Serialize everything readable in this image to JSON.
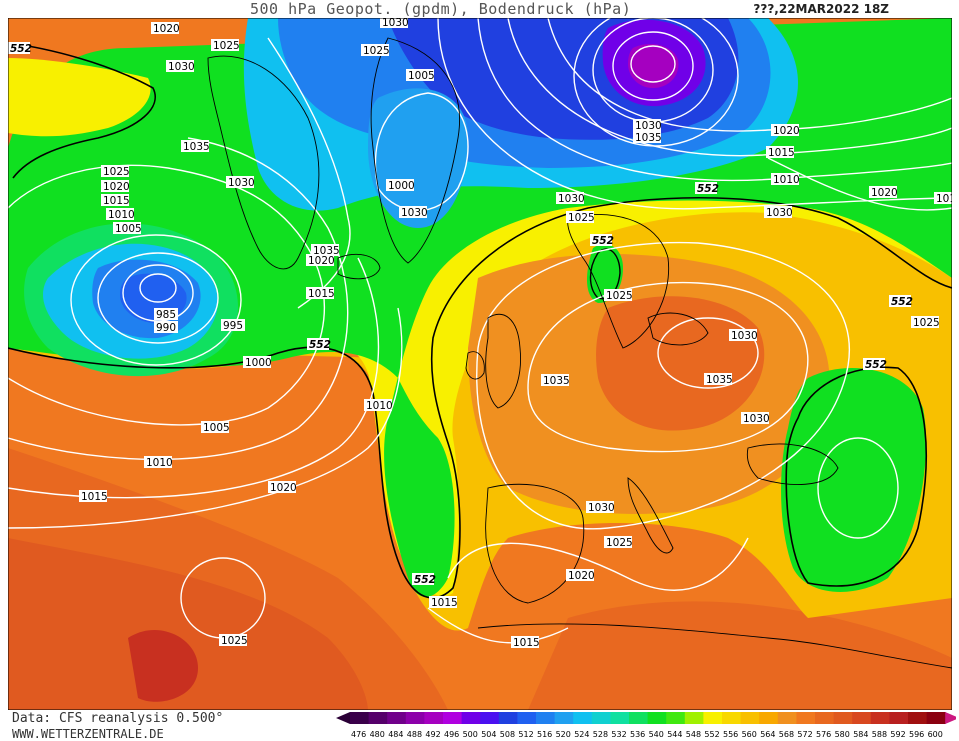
{
  "header": {
    "title": "500 hPa Geopot. (gpdm), Bodendruck (hPa)",
    "datetime": "???,22MAR2022 18Z"
  },
  "footer": {
    "data_source": "Data: CFS reanalysis 0.500°",
    "website": "WWW.WETTERZENTRALE.DE"
  },
  "colors": {
    "deep_purple": "#6a0fa8",
    "violet": "#8a2be2",
    "blue": "#2040e0",
    "light_blue": "#2090f0",
    "cyan": "#10d0e0",
    "green": "#10e020",
    "yellow": "#f8f000",
    "gold": "#f8c000",
    "orange": "#f09020",
    "dark_orange": "#e05a20",
    "red": "#c83020",
    "contour_552": "#000000",
    "isobar": "#ffffff"
  },
  "legend": {
    "values": [
      "476",
      "480",
      "484",
      "488",
      "492",
      "496",
      "500",
      "504",
      "508",
      "512",
      "516",
      "520",
      "524",
      "528",
      "532",
      "536",
      "540",
      "544",
      "548",
      "552",
      "556",
      "560",
      "564",
      "568",
      "572",
      "576",
      "580",
      "584",
      "588",
      "592",
      "596",
      "600"
    ],
    "colors": [
      "#3a004a",
      "#55006a",
      "#70008a",
      "#8c00aa",
      "#a500c0",
      "#b000e0",
      "#7000e8",
      "#4a10f0",
      "#2040e0",
      "#2060f0",
      "#2080f0",
      "#20a0f0",
      "#10c0f0",
      "#10d0d0",
      "#10e0a0",
      "#10e060",
      "#10e020",
      "#40e810",
      "#a0f000",
      "#f8f000",
      "#f8d800",
      "#f8c000",
      "#f8a800",
      "#f09020",
      "#f07820",
      "#e86820",
      "#e05a20",
      "#d84820",
      "#c83020",
      "#b82020",
      "#a01010",
      "#8a0010"
    ]
  },
  "labels": {
    "isobars": [
      "1020",
      "1025",
      "1030",
      "1035",
      "1030",
      "1025",
      "1020",
      "1015",
      "1010",
      "1005",
      "985",
      "990",
      "995",
      "1000",
      "1005",
      "1010",
      "1015",
      "1020",
      "1025",
      "1030",
      "1025",
      "1020",
      "1015",
      "1010",
      "1005",
      "1000",
      "1030",
      "1035",
      "1030",
      "1035",
      "1030",
      "1025",
      "1020",
      "1015",
      "1010",
      "1020",
      "1030",
      "1025",
      "1030",
      "1035",
      "1035",
      "1030",
      "1030",
      "1025",
      "1020",
      "1015",
      "1025",
      "1030",
      "1025",
      "1015",
      "1025",
      "1005",
      "1000",
      "1010",
      "1015",
      "1020",
      "1025",
      "1030",
      "1010"
    ],
    "heights": [
      "552",
      "552",
      "552",
      "552",
      "552",
      "552",
      "552",
      "552"
    ]
  }
}
